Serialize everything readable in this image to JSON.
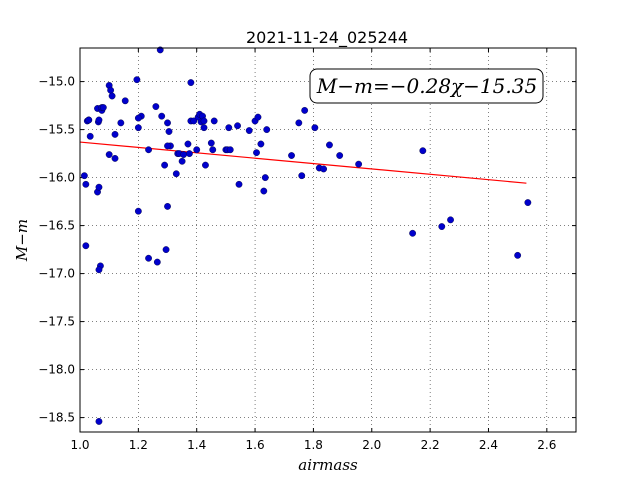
{
  "chart_data": {
    "type": "scatter",
    "title": "2021-11-24_025244",
    "xlabel": "airmass",
    "ylabel": "M−m",
    "xlim": [
      1.0,
      2.7
    ],
    "ylim": [
      -18.65,
      -14.65
    ],
    "y_inverted": true,
    "grid": true,
    "x_ticks": [
      1.0,
      1.2,
      1.4,
      1.6,
      1.8,
      2.0,
      2.2,
      2.4,
      2.6
    ],
    "x_tick_labels": [
      "1.0",
      "1.2",
      "1.4",
      "1.6",
      "1.8",
      "2.0",
      "2.2",
      "2.4",
      "2.6"
    ],
    "y_ticks": [
      -15.0,
      -15.5,
      -16.0,
      -16.5,
      -17.0,
      -17.5,
      -18.0,
      -18.5
    ],
    "y_tick_labels": [
      "−15.0",
      "−15.5",
      "−16.0",
      "−16.5",
      "−17.0",
      "−17.5",
      "−18.0",
      "−18.5"
    ],
    "annotation": "M−m=−0.28χ−15.35",
    "annotation_position": "top-right",
    "colors": {
      "points": "#0000cc",
      "fit": "#ff0000"
    },
    "series": [
      {
        "kind": "points",
        "x": [
          1.015,
          1.02,
          1.025,
          1.03,
          1.02,
          1.035,
          1.06,
          1.065,
          1.07,
          1.065,
          1.07,
          1.03,
          1.063,
          1.065,
          1.06,
          1.075,
          1.075,
          1.08,
          1.1,
          1.105,
          1.11,
          1.1,
          1.12,
          1.12,
          1.14,
          1.155,
          1.195,
          1.2,
          1.2,
          1.21,
          1.2,
          1.235,
          1.235,
          1.26,
          1.265,
          1.275,
          1.28,
          1.29,
          1.3,
          1.3,
          1.305,
          1.31,
          1.295,
          1.3,
          1.33,
          1.335,
          1.34,
          1.35,
          1.355,
          1.37,
          1.38,
          1.375,
          1.38,
          1.39,
          1.4,
          1.405,
          1.41,
          1.415,
          1.42,
          1.425,
          1.43,
          1.425,
          1.45,
          1.46,
          1.455,
          1.5,
          1.505,
          1.51,
          1.515,
          1.54,
          1.545,
          1.58,
          1.6,
          1.61,
          1.62,
          1.63,
          1.635,
          1.64,
          1.605,
          1.725,
          1.75,
          1.76,
          1.77,
          1.805,
          1.82,
          1.835,
          1.855,
          1.89,
          1.955,
          2.14,
          2.175,
          2.24,
          2.27,
          2.5,
          2.535,
          1.065
        ],
        "y": [
          -15.98,
          -16.07,
          -15.41,
          -15.4,
          -16.71,
          -15.57,
          -16.15,
          -16.1,
          -16.92,
          -16.96,
          -15.28,
          -15.4,
          -15.42,
          -15.4,
          -15.28,
          -15.3,
          -15.27,
          -15.27,
          -15.04,
          -15.09,
          -15.15,
          -15.76,
          -15.55,
          -15.8,
          -15.43,
          -15.2,
          -14.98,
          -15.48,
          -16.35,
          -15.36,
          -15.38,
          -15.71,
          -16.84,
          -15.26,
          -16.88,
          -14.67,
          -15.36,
          -15.87,
          -15.43,
          -16.3,
          -15.52,
          -15.67,
          -16.75,
          -15.67,
          -15.96,
          -15.75,
          -15.75,
          -15.83,
          -15.76,
          -15.65,
          -15.41,
          -15.75,
          -15.01,
          -15.41,
          -15.71,
          -15.37,
          -15.34,
          -15.42,
          -15.36,
          -15.48,
          -15.87,
          -15.41,
          -15.64,
          -15.41,
          -15.71,
          -15.71,
          -15.71,
          -15.48,
          -15.71,
          -15.46,
          -16.07,
          -15.51,
          -15.41,
          -15.37,
          -15.65,
          -16.14,
          -16.0,
          -15.5,
          -15.74,
          -15.77,
          -15.43,
          -15.98,
          -15.3,
          -15.48,
          -15.9,
          -15.91,
          -15.66,
          -15.77,
          -15.86,
          -16.58,
          -15.72,
          -16.51,
          -16.44,
          -16.81,
          -16.26,
          -18.54
        ]
      },
      {
        "kind": "fit-line",
        "x": [
          1.0,
          2.53
        ],
        "y": [
          -15.63,
          -16.058
        ]
      }
    ]
  }
}
